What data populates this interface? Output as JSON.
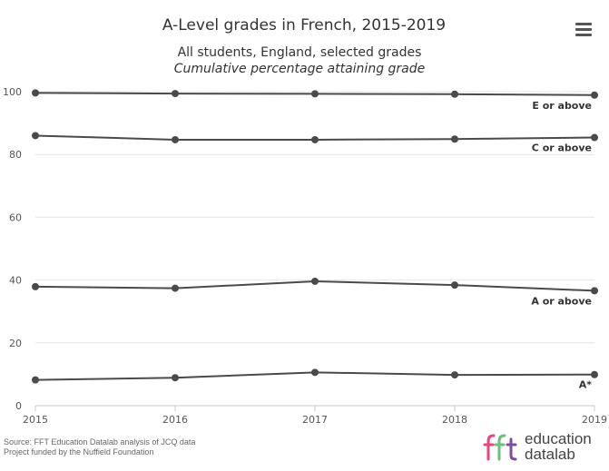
{
  "chart_data": {
    "type": "line",
    "title": "A-Level grades in French, 2015-2019",
    "subtitle": "All students, England, selected grades",
    "subtitle2": "Cumulative percentage attaining grade",
    "x": [
      "2015",
      "2016",
      "2017",
      "2018",
      "2019"
    ],
    "ylim": [
      0,
      100
    ],
    "yticks": [
      0,
      20,
      40,
      60,
      80,
      100
    ],
    "grid": true,
    "series": [
      {
        "name": "E or above",
        "values": [
          99.6,
          99.4,
          99.3,
          99.2,
          98.9
        ]
      },
      {
        "name": "C or above",
        "values": [
          86.0,
          84.7,
          84.7,
          84.9,
          85.4
        ]
      },
      {
        "name": "A or above",
        "values": [
          37.9,
          37.4,
          39.6,
          38.4,
          36.6
        ]
      },
      {
        "name": "A*",
        "values": [
          8.2,
          8.9,
          10.6,
          9.8,
          9.9
        ]
      }
    ],
    "line_color": "#4a4a4a"
  },
  "footer": {
    "source_line1": "Source: FFT Education Datalab analysis of JCQ data",
    "source_line2": "Project funded by the Nuffield Foundation"
  },
  "logo": {
    "line1": "education",
    "line2": "datalab",
    "colors": [
      "#e8467c",
      "#6bbf7a",
      "#7b4fa0"
    ]
  },
  "menu": {
    "icon": "hamburger-menu-icon"
  }
}
